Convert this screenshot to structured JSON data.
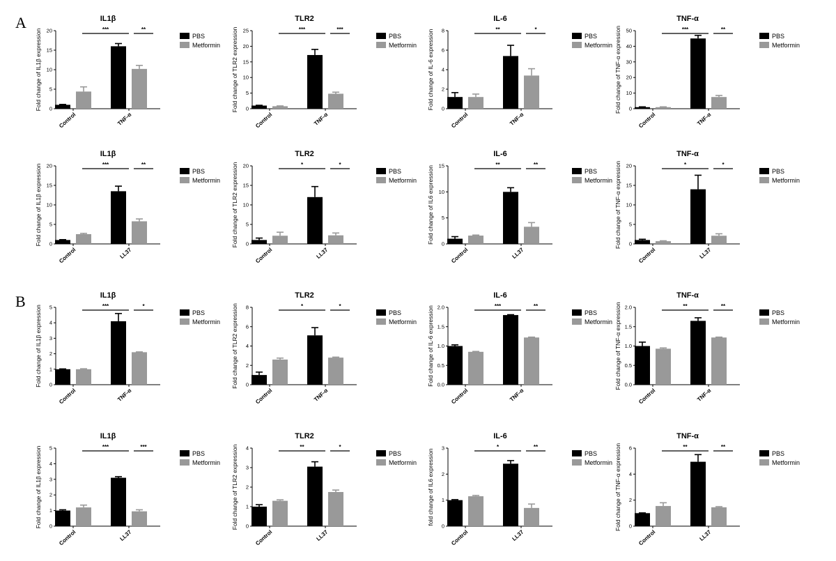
{
  "panel_labels": [
    "A",
    "B"
  ],
  "colors": {
    "pbs": "#000000",
    "metformin": "#999999"
  },
  "chart_data": [
    {
      "type": "bar",
      "panel": "A",
      "title": "IL1β",
      "ylabel": "Fold change of IL1β expression",
      "ylim": [
        0,
        20
      ],
      "yticks": [
        0,
        5,
        10,
        15,
        20
      ],
      "categories": [
        "Control",
        "TNF-α"
      ],
      "series": [
        {
          "name": "PBS",
          "values": [
            1,
            16
          ],
          "errors": [
            0.1,
            0.7
          ]
        },
        {
          "name": "Metformin",
          "values": [
            4.4,
            10.2
          ],
          "errors": [
            1.2,
            0.9
          ]
        }
      ],
      "significance": [
        {
          "type": "between",
          "label": "***"
        },
        {
          "type": "within",
          "label": "**"
        }
      ]
    },
    {
      "type": "bar",
      "panel": "A",
      "title": "TLR2",
      "ylabel": "Fold change of TLR2 expression",
      "ylim": [
        0,
        25
      ],
      "yticks": [
        0,
        5,
        10,
        15,
        20,
        25
      ],
      "categories": [
        "Control",
        "TNF-α"
      ],
      "series": [
        {
          "name": "PBS",
          "values": [
            1,
            17.2
          ],
          "errors": [
            0.1,
            1.8
          ]
        },
        {
          "name": "Metformin",
          "values": [
            0.8,
            4.8
          ],
          "errors": [
            0.1,
            0.5
          ]
        }
      ],
      "significance": [
        {
          "type": "between",
          "label": "***"
        },
        {
          "type": "within",
          "label": "***"
        }
      ]
    },
    {
      "type": "bar",
      "panel": "A",
      "title": "IL-6",
      "ylabel": "Fold change of IL-6 expression",
      "ylim": [
        0,
        8
      ],
      "yticks": [
        0,
        2,
        4,
        6,
        8
      ],
      "categories": [
        "Control",
        "TNF-α"
      ],
      "series": [
        {
          "name": "PBS",
          "values": [
            1.2,
            5.4
          ],
          "errors": [
            0.45,
            1.1
          ]
        },
        {
          "name": "Metformin",
          "values": [
            1.2,
            3.4
          ],
          "errors": [
            0.3,
            0.7
          ]
        }
      ],
      "significance": [
        {
          "type": "between",
          "label": "**"
        },
        {
          "type": "within",
          "label": "*"
        }
      ]
    },
    {
      "type": "bar",
      "panel": "A",
      "title": "TNF-α",
      "ylabel": "Fold change of TNF-α expression",
      "ylim": [
        0,
        50
      ],
      "yticks": [
        0,
        10,
        20,
        30,
        40,
        50
      ],
      "categories": [
        "Control",
        "TNF-α"
      ],
      "series": [
        {
          "name": "PBS",
          "values": [
            1,
            45
          ],
          "errors": [
            0.2,
            2
          ]
        },
        {
          "name": "Metformin",
          "values": [
            1,
            7.5
          ],
          "errors": [
            0.2,
            1
          ]
        }
      ],
      "significance": [
        {
          "type": "between",
          "label": "***"
        },
        {
          "type": "within",
          "label": "**"
        }
      ]
    },
    {
      "type": "bar",
      "panel": "A",
      "title": "IL1β",
      "ylabel": "Fold change of IL1β expression",
      "ylim": [
        0,
        20
      ],
      "yticks": [
        0,
        5,
        10,
        15,
        20
      ],
      "categories": [
        "Control",
        "LL37"
      ],
      "series": [
        {
          "name": "PBS",
          "values": [
            1,
            13.5
          ],
          "errors": [
            0.1,
            1.3
          ]
        },
        {
          "name": "Metformin",
          "values": [
            2.5,
            5.8
          ],
          "errors": [
            0.2,
            0.6
          ]
        }
      ],
      "significance": [
        {
          "type": "between",
          "label": "***"
        },
        {
          "type": "within",
          "label": "**"
        }
      ]
    },
    {
      "type": "bar",
      "panel": "A",
      "title": "TLR2",
      "ylabel": "Fold change of TLR2 expression",
      "ylim": [
        0,
        20
      ],
      "yticks": [
        0,
        5,
        10,
        15,
        20
      ],
      "categories": [
        "Control",
        "LL37"
      ],
      "series": [
        {
          "name": "PBS",
          "values": [
            1,
            12
          ],
          "errors": [
            0.5,
            2.7
          ]
        },
        {
          "name": "Metformin",
          "values": [
            2.1,
            2.2
          ],
          "errors": [
            0.9,
            0.6
          ]
        }
      ],
      "significance": [
        {
          "type": "between",
          "label": "*"
        },
        {
          "type": "within",
          "label": "*"
        }
      ]
    },
    {
      "type": "bar",
      "panel": "A",
      "title": "IL-6",
      "ylabel": "Fold change of IL6 expression",
      "ylim": [
        0,
        15
      ],
      "yticks": [
        0,
        5,
        10,
        15
      ],
      "categories": [
        "Control",
        "LL37"
      ],
      "series": [
        {
          "name": "PBS",
          "values": [
            1,
            10
          ],
          "errors": [
            0.4,
            0.8
          ]
        },
        {
          "name": "Metformin",
          "values": [
            1.6,
            3.3
          ],
          "errors": [
            0.1,
            0.8
          ]
        }
      ],
      "significance": [
        {
          "type": "between",
          "label": "**"
        },
        {
          "type": "within",
          "label": "**"
        }
      ]
    },
    {
      "type": "bar",
      "panel": "A",
      "title": "TNF-α",
      "ylabel": "Fold change of TNF-α expression",
      "ylim": [
        0,
        20
      ],
      "yticks": [
        0,
        5,
        10,
        15,
        20
      ],
      "categories": [
        "Control",
        "LL37"
      ],
      "series": [
        {
          "name": "PBS",
          "values": [
            1,
            14
          ],
          "errors": [
            0.2,
            3.6
          ]
        },
        {
          "name": "Metformin",
          "values": [
            0.7,
            2.1
          ],
          "errors": [
            0.1,
            0.5
          ]
        }
      ],
      "significance": [
        {
          "type": "between",
          "label": "*"
        },
        {
          "type": "within",
          "label": "*"
        }
      ]
    },
    {
      "type": "bar",
      "panel": "B",
      "title": "IL1β",
      "ylabel": "Fold change of IL1β expression",
      "ylim": [
        0,
        5
      ],
      "yticks": [
        0,
        1,
        2,
        3,
        4,
        5
      ],
      "categories": [
        "Control",
        "TNF-α"
      ],
      "series": [
        {
          "name": "PBS",
          "values": [
            1,
            4.1
          ],
          "errors": [
            0.02,
            0.5
          ]
        },
        {
          "name": "Metformin",
          "values": [
            1,
            2.1
          ],
          "errors": [
            0.03,
            0.02
          ]
        }
      ],
      "significance": [
        {
          "type": "between",
          "label": "***"
        },
        {
          "type": "within",
          "label": "*"
        }
      ]
    },
    {
      "type": "bar",
      "panel": "B",
      "title": "TLR2",
      "ylabel": "Fold change of TLR2 expression",
      "ylim": [
        0,
        8
      ],
      "yticks": [
        0,
        2,
        4,
        6,
        8
      ],
      "categories": [
        "Control",
        "TNF-α"
      ],
      "series": [
        {
          "name": "PBS",
          "values": [
            1,
            5.1
          ],
          "errors": [
            0.3,
            0.8
          ]
        },
        {
          "name": "Metformin",
          "values": [
            2.6,
            2.8
          ],
          "errors": [
            0.15,
            0.05
          ]
        }
      ],
      "significance": [
        {
          "type": "between",
          "label": "*"
        },
        {
          "type": "within",
          "label": "*"
        }
      ]
    },
    {
      "type": "bar",
      "panel": "B",
      "title": "IL-6",
      "ylabel": "Fold change of IL-6 expression",
      "ylim": [
        0,
        2
      ],
      "yticks": [
        "0.0",
        "0.5",
        "1.0",
        "1.5",
        "2.0"
      ],
      "categories": [
        "Control",
        "TNF-α"
      ],
      "series": [
        {
          "name": "PBS",
          "values": [
            1,
            1.8
          ],
          "errors": [
            0.03,
            0.01
          ]
        },
        {
          "name": "Metformin",
          "values": [
            0.85,
            1.22
          ],
          "errors": [
            0.01,
            0.01
          ]
        }
      ],
      "significance": [
        {
          "type": "between",
          "label": "***"
        },
        {
          "type": "within",
          "label": "**"
        }
      ]
    },
    {
      "type": "bar",
      "panel": "B",
      "title": "TNF-α",
      "ylabel": "Fold change of TNF-α expression",
      "ylim": [
        0,
        2
      ],
      "yticks": [
        "0.0",
        "0.5",
        "1.0",
        "1.5",
        "2.0"
      ],
      "categories": [
        "Control",
        "TNF-α"
      ],
      "series": [
        {
          "name": "PBS",
          "values": [
            1,
            1.65
          ],
          "errors": [
            0.1,
            0.08
          ]
        },
        {
          "name": "Metformin",
          "values": [
            0.93,
            1.22
          ],
          "errors": [
            0.02,
            0.01
          ]
        }
      ],
      "significance": [
        {
          "type": "between",
          "label": "**"
        },
        {
          "type": "within",
          "label": "**"
        }
      ]
    },
    {
      "type": "bar",
      "panel": "B",
      "title": "IL1β",
      "ylabel": "Fold change of IL1β expression",
      "ylim": [
        0,
        5
      ],
      "yticks": [
        0,
        1,
        2,
        3,
        4,
        5
      ],
      "categories": [
        "Control",
        "LL37"
      ],
      "series": [
        {
          "name": "PBS",
          "values": [
            1,
            3.1
          ],
          "errors": [
            0.05,
            0.07
          ]
        },
        {
          "name": "Metformin",
          "values": [
            1.2,
            0.95
          ],
          "errors": [
            0.15,
            0.1
          ]
        }
      ],
      "significance": [
        {
          "type": "between",
          "label": "***"
        },
        {
          "type": "within",
          "label": "***"
        }
      ]
    },
    {
      "type": "bar",
      "panel": "B",
      "title": "TLR2",
      "ylabel": "Fold change of TLR2 expression",
      "ylim": [
        0,
        4
      ],
      "yticks": [
        0,
        1,
        2,
        3,
        4
      ],
      "categories": [
        "Control",
        "LL37"
      ],
      "series": [
        {
          "name": "PBS",
          "values": [
            1,
            3.05
          ],
          "errors": [
            0.1,
            0.25
          ]
        },
        {
          "name": "Metformin",
          "values": [
            1.3,
            1.75
          ],
          "errors": [
            0.05,
            0.1
          ]
        }
      ],
      "significance": [
        {
          "type": "between",
          "label": "**"
        },
        {
          "type": "within",
          "label": "*"
        }
      ]
    },
    {
      "type": "bar",
      "panel": "B",
      "title": "IL-6",
      "ylabel": "fold change of IL6 expression",
      "ylim": [
        0,
        3
      ],
      "yticks": [
        0,
        1,
        2,
        3
      ],
      "categories": [
        "Control",
        "LL37"
      ],
      "series": [
        {
          "name": "PBS",
          "values": [
            1,
            2.4
          ],
          "errors": [
            0.02,
            0.12
          ]
        },
        {
          "name": "Metformin",
          "values": [
            1.15,
            0.7
          ],
          "errors": [
            0.03,
            0.15
          ]
        }
      ],
      "significance": [
        {
          "type": "between",
          "label": "*"
        },
        {
          "type": "within",
          "label": "**"
        }
      ]
    },
    {
      "type": "bar",
      "panel": "B",
      "title": "TNF-α",
      "ylabel": "Fold change of TNF-α expression",
      "ylim": [
        0,
        6
      ],
      "yticks": [
        0,
        2,
        4,
        6
      ],
      "categories": [
        "Control",
        "LL37"
      ],
      "series": [
        {
          "name": "PBS",
          "values": [
            1,
            4.95
          ],
          "errors": [
            0.02,
            0.55
          ]
        },
        {
          "name": "Metformin",
          "values": [
            1.55,
            1.45
          ],
          "errors": [
            0.25,
            0.05
          ]
        }
      ],
      "significance": [
        {
          "type": "between",
          "label": "**"
        },
        {
          "type": "within",
          "label": "**"
        }
      ]
    }
  ]
}
